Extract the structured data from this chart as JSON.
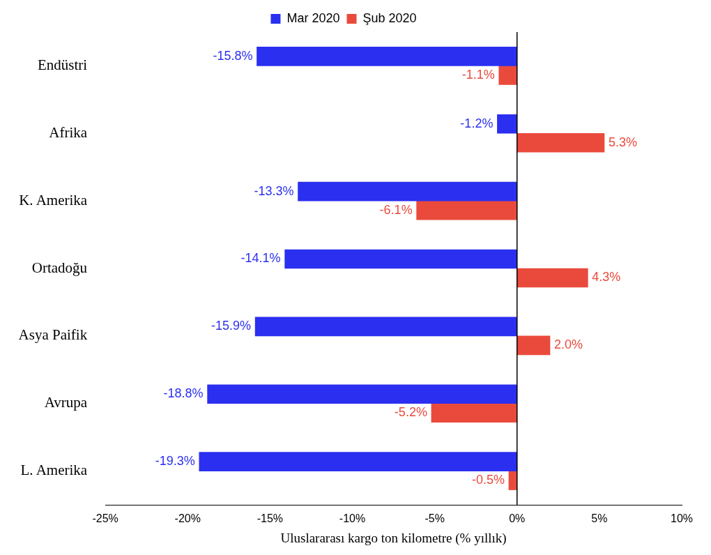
{
  "chart_data": {
    "type": "bar",
    "orientation": "horizontal",
    "xlabel": "Uluslararası kargo ton kilometre (% yıllık)",
    "categories": [
      "Endüstri",
      "Afrika",
      "K. Amerika",
      "Ortadoğu",
      "Asya Paifik",
      "Avrupa",
      "L. Amerika"
    ],
    "series": [
      {
        "name": "Mar 2020",
        "color": "#2b2ff0",
        "values": [
          -15.8,
          -1.2,
          -13.3,
          -14.1,
          -15.9,
          -18.8,
          -19.3
        ],
        "value_labels": [
          "-15.8%",
          "-1.2%",
          "-13.3%",
          "-14.1%",
          "-15.9%",
          "-18.8%",
          "-19.3%"
        ]
      },
      {
        "name": "Şub 2020",
        "color": "#ea4a3c",
        "values": [
          -1.1,
          5.3,
          -6.1,
          4.3,
          2.0,
          -5.2,
          -0.5
        ],
        "value_labels": [
          "-1.1%",
          "5.3%",
          "-6.1%",
          "4.3%",
          "2.0%",
          "-5.2%",
          "-0.5%"
        ]
      }
    ],
    "xlim": [
      -25,
      10
    ],
    "xticks": [
      {
        "value": -25,
        "label": "-25%"
      },
      {
        "value": -20,
        "label": "-20%"
      },
      {
        "value": -15,
        "label": "-15%"
      },
      {
        "value": -10,
        "label": "-10%"
      },
      {
        "value": -5,
        "label": "-5%"
      },
      {
        "value": 0,
        "label": "0%"
      },
      {
        "value": 5,
        "label": "5%"
      },
      {
        "value": 10,
        "label": "10%"
      }
    ],
    "ref_lines": [
      {
        "axis": "x",
        "value": 0,
        "color": "#000000"
      }
    ],
    "legend": "top",
    "grid": false
  }
}
